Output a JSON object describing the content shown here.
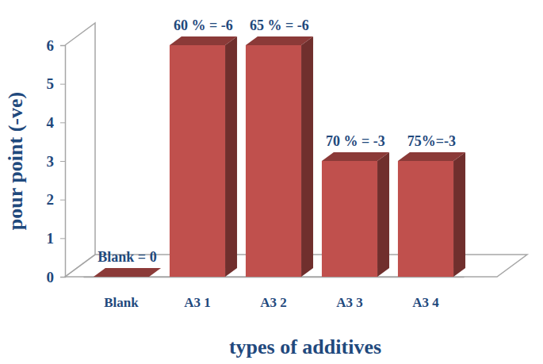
{
  "chart_data": {
    "type": "bar",
    "x_label": "types of additives",
    "y_label": "pour point (-ve)",
    "categories": [
      "Blank",
      "A3 1",
      "A3 2",
      "A3 3",
      "A3 4"
    ],
    "values": [
      0,
      6,
      6,
      3,
      3
    ],
    "annotations": [
      "Blank = 0",
      "60 % = -6",
      "65 % = -6",
      "70 % = -3",
      "75%=-3"
    ],
    "color": "#c0504d",
    "ylim": [
      0,
      6
    ],
    "yticks": [
      0,
      1,
      2,
      3,
      4,
      5,
      6
    ],
    "grid": false
  }
}
